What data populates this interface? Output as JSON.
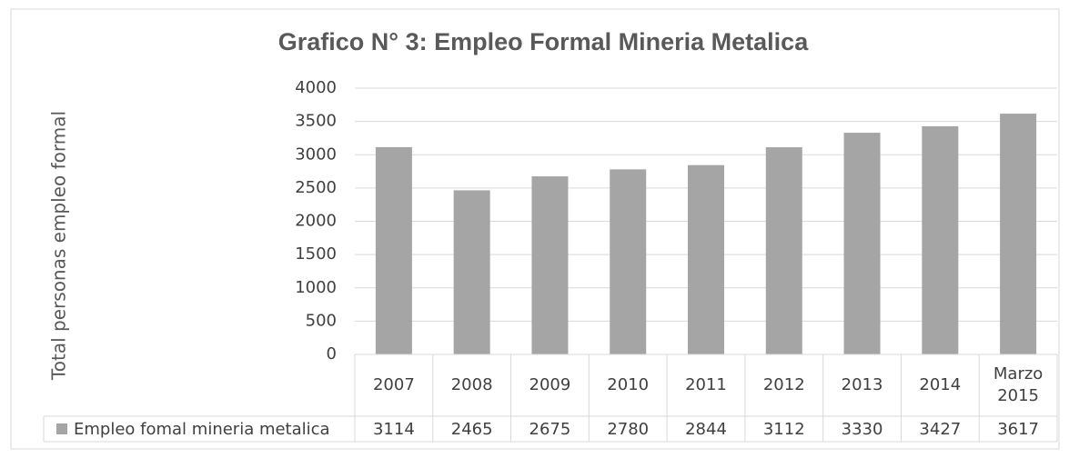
{
  "chart_data": {
    "type": "bar",
    "title": "Grafico N° 3: Empleo Formal Mineria Metalica",
    "y_label": "Total personas empleo formal",
    "categories": [
      "2007",
      "2008",
      "2009",
      "2010",
      "2011",
      "2012",
      "2013",
      "2014",
      "Marzo 2015"
    ],
    "series": [
      {
        "name": "Empleo fomal mineria metalica",
        "color": "#a5a5a5",
        "values": [
          3114,
          2465,
          2675,
          2780,
          2844,
          3112,
          3330,
          3427,
          3617
        ]
      }
    ],
    "ylim": [
      0,
      4000
    ],
    "yticks": [
      0,
      500,
      1000,
      1500,
      2000,
      2500,
      3000,
      3500,
      4000
    ],
    "grid": true
  }
}
